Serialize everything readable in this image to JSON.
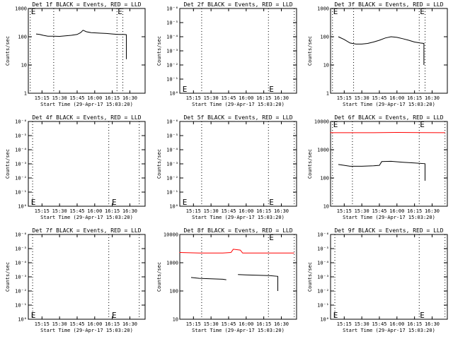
{
  "colors": {
    "events": "#000000",
    "lld": "#ff0000",
    "background": "#ffffff"
  },
  "chart_data": [
    {
      "type": "line",
      "title": "Det 1f BLACK = Events, RED = LLD",
      "xlabel": "Start Time (29-Apr-17 15:03:20)",
      "ylabel": "Counts/sec",
      "y_scale": "log",
      "ylim": [
        1,
        1000
      ],
      "y_ticks": [
        "1",
        "10",
        "100",
        "1000"
      ],
      "x_ticks": [
        "15:15",
        "15:30",
        "15:45",
        "16:00",
        "16:15",
        "16:30"
      ],
      "xlim": [
        "15:03:20",
        "16:43"
      ],
      "dotted_lines": [
        "15:05",
        "15:25",
        "16:19",
        "16:24"
      ],
      "markers": [
        {
          "text": "E",
          "x": "15:05",
          "y": 1000
        },
        {
          "text": "E",
          "x": "16:19",
          "y": 1000
        }
      ],
      "series": [
        {
          "color": "black",
          "x": [
            "15:10",
            "15:13",
            "15:16",
            "15:20",
            "15:25",
            "15:30",
            "15:35",
            "15:40",
            "15:45",
            "15:48",
            "15:50",
            "15:53",
            "15:57",
            "16:00",
            "16:05",
            "16:10",
            "16:15",
            "16:18",
            "16:21",
            "16:25",
            "16:27",
            "16:27"
          ],
          "values": [
            125,
            120,
            112,
            105,
            105,
            103,
            107,
            112,
            120,
            140,
            170,
            150,
            140,
            137,
            133,
            130,
            125,
            122,
            120,
            120,
            118,
            16
          ]
        }
      ]
    },
    {
      "type": "line",
      "title": "Det 2f BLACK = Events, RED = LLD",
      "xlabel": "Start Time (29-Apr-17 15:03:20)",
      "ylabel": "Counts/sec",
      "y_scale": "log",
      "ylim": [
        1,
        1000000
      ],
      "y_ticks": [
        "10⁰",
        "10⁻¹",
        "10⁻²",
        "10⁻³",
        "10⁻⁴",
        "10⁻⁵",
        "10⁻⁶"
      ],
      "x_ticks": [
        "15:15",
        "15:30",
        "15:45",
        "16:00",
        "16:15",
        "16:30"
      ],
      "xlim": [
        "15:03:20",
        "16:43"
      ],
      "dotted_lines": [
        "15:22",
        "16:19",
        "16:41"
      ],
      "markers": [
        {
          "text": "E",
          "x": "15:05",
          "y": 2
        },
        {
          "text": "E",
          "x": "16:19",
          "y": 2
        }
      ],
      "series": []
    },
    {
      "type": "line",
      "title": "Det 3f BLACK = Events, RED = LLD",
      "xlabel": "Start Time (29-Apr-17 15:03:20)",
      "ylabel": "Counts/sec",
      "y_scale": "log",
      "ylim": [
        1,
        1000
      ],
      "y_ticks": [
        "1",
        "10",
        "100",
        "1000"
      ],
      "x_ticks": [
        "15:15",
        "15:30",
        "15:45",
        "16:00",
        "16:15",
        "16:30"
      ],
      "xlim": [
        "15:03:20",
        "16:43"
      ],
      "dotted_lines": [
        "15:05",
        "15:23",
        "16:19",
        "16:24"
      ],
      "markers": [
        {
          "text": "E",
          "x": "15:05",
          "y": 1000
        },
        {
          "text": "E",
          "x": "16:19",
          "y": 1000
        }
      ],
      "series": [
        {
          "color": "black",
          "x": [
            "15:10",
            "15:15",
            "15:20",
            "15:25",
            "15:30",
            "15:35",
            "15:40",
            "15:45",
            "15:50",
            "15:55",
            "16:00",
            "16:05",
            "16:10",
            "16:15",
            "16:20",
            "16:23",
            "16:23"
          ],
          "values": [
            100,
            80,
            60,
            55,
            55,
            58,
            65,
            75,
            90,
            100,
            95,
            85,
            75,
            65,
            60,
            58,
            10
          ]
        }
      ]
    },
    {
      "type": "line",
      "title": "Det 4f BLACK = Events, RED = LLD",
      "xlabel": "Start Time (29-Apr-17 15:03:20)",
      "ylabel": "Counts/sec",
      "y_scale": "log",
      "ylim": [
        1,
        1000000
      ],
      "y_ticks": [
        "10⁰",
        "10⁻¹",
        "10⁻²",
        "10⁻³",
        "10⁻⁴",
        "10⁻⁵",
        "10⁻⁶"
      ],
      "x_ticks": [
        "15:15",
        "15:30",
        "15:45",
        "16:00",
        "16:15",
        "16:30"
      ],
      "xlim": [
        "15:03:20",
        "16:43"
      ],
      "dotted_lines": [
        "15:07",
        "16:12",
        "16:38"
      ],
      "markers": [
        {
          "text": "E",
          "x": "15:05",
          "y": 2
        },
        {
          "text": "E",
          "x": "16:14",
          "y": 2
        }
      ],
      "series": []
    },
    {
      "type": "line",
      "title": "Det 5f BLACK = Events, RED = LLD",
      "xlabel": "Start Time (29-Apr-17 15:03:20)",
      "ylabel": "Counts/sec",
      "y_scale": "log",
      "ylim": [
        1,
        1000000
      ],
      "y_ticks": [
        "10⁰",
        "10⁻¹",
        "10⁻²",
        "10⁻³",
        "10⁻⁴",
        "10⁻⁵",
        "10⁻⁶"
      ],
      "x_ticks": [
        "15:15",
        "15:30",
        "15:45",
        "16:00",
        "16:15",
        "16:30"
      ],
      "xlim": [
        "15:03:20",
        "16:43"
      ],
      "dotted_lines": [
        "15:22",
        "16:19",
        "16:41"
      ],
      "markers": [
        {
          "text": "E",
          "x": "15:05",
          "y": 2
        },
        {
          "text": "E",
          "x": "16:19",
          "y": 2
        }
      ],
      "series": []
    },
    {
      "type": "line",
      "title": "Det 6f BLACK = Events, RED = LLD",
      "xlabel": "Start Time (29-Apr-17 15:03:20)",
      "ylabel": "Counts/sec",
      "y_scale": "log",
      "ylim": [
        10,
        10000
      ],
      "y_ticks": [
        "10",
        "100",
        "1000",
        "10000"
      ],
      "x_ticks": [
        "15:15",
        "15:30",
        "15:45",
        "16:00",
        "16:15",
        "16:30"
      ],
      "xlim": [
        "15:03:20",
        "16:43"
      ],
      "dotted_lines": [
        "15:05",
        "15:22",
        "16:19",
        "16:41"
      ],
      "markers": [
        {
          "text": "E",
          "x": "15:05",
          "y": 10000
        },
        {
          "text": "E",
          "x": "16:19",
          "y": 10000
        }
      ],
      "series": [
        {
          "name": "LLD",
          "color": "red",
          "x": [
            "15:03",
            "15:20",
            "15:40",
            "16:00",
            "16:20",
            "16:41"
          ],
          "values": [
            4000,
            4000,
            4000,
            4100,
            4050,
            4000
          ]
        },
        {
          "name": "Events",
          "color": "black",
          "x": [
            "15:10",
            "15:15",
            "15:20",
            "15:30",
            "15:40",
            "15:45",
            "15:47",
            "15:55",
            "16:05",
            "16:15",
            "16:24",
            "16:24"
          ],
          "values": [
            300,
            280,
            260,
            260,
            270,
            280,
            380,
            390,
            360,
            340,
            320,
            80
          ]
        }
      ]
    },
    {
      "type": "line",
      "title": "Det 7f BLACK = Events, RED = LLD",
      "xlabel": "Start Time (29-Apr-17 15:03:20)",
      "ylabel": "Counts/sec",
      "y_scale": "log",
      "ylim": [
        1,
        1000000
      ],
      "y_ticks": [
        "10⁰",
        "10⁻¹",
        "10⁻²",
        "10⁻³",
        "10⁻⁴",
        "10⁻⁵",
        "10⁻⁶"
      ],
      "x_ticks": [
        "15:15",
        "15:30",
        "15:45",
        "16:00",
        "16:15",
        "16:30"
      ],
      "xlim": [
        "15:03:20",
        "16:43"
      ],
      "dotted_lines": [
        "15:07",
        "16:12",
        "16:38"
      ],
      "markers": [
        {
          "text": "E",
          "x": "15:05",
          "y": 2
        },
        {
          "text": "E",
          "x": "16:14",
          "y": 2
        }
      ],
      "series": []
    },
    {
      "type": "line",
      "title": "Det 8f BLACK = Events, RED = LLD",
      "xlabel": "Start Time (29-Apr-17 15:03:20)",
      "ylabel": "Counts/sec",
      "y_scale": "log",
      "ylim": [
        10,
        10000
      ],
      "y_ticks": [
        "10",
        "100",
        "1000",
        "10000"
      ],
      "x_ticks": [
        "15:15",
        "15:30",
        "15:45",
        "16:00",
        "16:15",
        "16:30"
      ],
      "xlim": [
        "15:03:20",
        "16:43"
      ],
      "dotted_lines": [
        "15:22",
        "16:19",
        "16:41"
      ],
      "markers": [
        {
          "text": "E",
          "x": "16:19",
          "y": 10000
        }
      ],
      "series": [
        {
          "name": "LLD",
          "color": "red",
          "x": [
            "15:03",
            "15:20",
            "15:40",
            "15:47",
            "15:49",
            "15:55",
            "15:57",
            "16:20",
            "16:41"
          ],
          "values": [
            2300,
            2200,
            2200,
            2300,
            3000,
            2800,
            2200,
            2200,
            2200
          ]
        },
        {
          "name": "Events",
          "color": "black",
          "x": [
            "15:13",
            "15:20",
            "15:30",
            "15:40",
            "15:43"
          ],
          "values": [
            300,
            280,
            270,
            260,
            250
          ]
        },
        {
          "name": "Events",
          "color": "black",
          "x": [
            "15:53",
            "16:00",
            "16:10",
            "16:20",
            "16:27",
            "16:27"
          ],
          "values": [
            380,
            370,
            360,
            350,
            330,
            100
          ]
        }
      ]
    },
    {
      "type": "line",
      "title": "Det 9f BLACK = Events, RED = LLD",
      "xlabel": "Start Time (29-Apr-17 15:03:20)",
      "ylabel": "Counts/sec",
      "y_scale": "log",
      "ylim": [
        1,
        1000000
      ],
      "y_ticks": [
        "10⁰",
        "10⁻¹",
        "10⁻²",
        "10⁻³",
        "10⁻⁴",
        "10⁻⁵",
        "10⁻⁶"
      ],
      "x_ticks": [
        "15:15",
        "15:30",
        "15:45",
        "16:00",
        "16:15",
        "16:30"
      ],
      "xlim": [
        "15:03:20",
        "16:43"
      ],
      "dotted_lines": [
        "15:07",
        "16:19",
        "16:41"
      ],
      "markers": [
        {
          "text": "E",
          "x": "15:05",
          "y": 2
        },
        {
          "text": "E",
          "x": "16:19",
          "y": 2
        }
      ],
      "series": []
    }
  ]
}
